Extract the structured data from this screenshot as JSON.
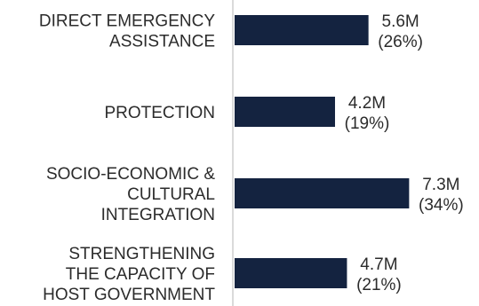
{
  "colors": {
    "bar": "#142340",
    "axis": "#b4b4b4",
    "text": "#2b2b2b"
  },
  "chart_data": {
    "type": "bar",
    "orientation": "horizontal",
    "title": "",
    "xlabel": "",
    "ylabel": "",
    "categories": [
      [
        "DIRECT EMERGENCY",
        "ASSISTANCE"
      ],
      [
        "PROTECTION"
      ],
      [
        "SOCIO-ECONOMIC &",
        "CULTURAL",
        "INTEGRATION"
      ],
      [
        "STRENGTHENING",
        "THE CAPACITY OF",
        "HOST GOVERNMENT"
      ]
    ],
    "values": [
      5.6,
      4.2,
      7.3,
      4.7
    ],
    "value_labels": [
      "5.6M",
      "4.2M",
      "7.3M",
      "4.7M"
    ],
    "percent_labels": [
      "(26%)",
      "(19%)",
      "(34%)",
      "(21%)"
    ],
    "xlim": [
      0,
      8
    ],
    "grid": false,
    "legend": "none"
  }
}
